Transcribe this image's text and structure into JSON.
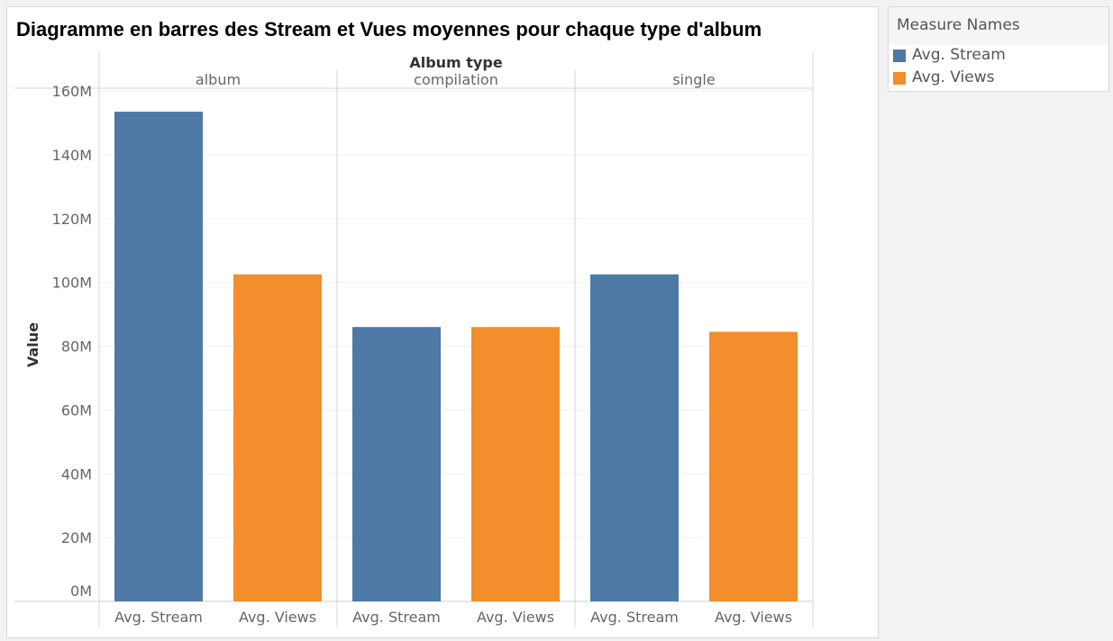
{
  "chart_title": "Diagramme en barres des Stream et Vues moyennes pour chaque type d'album",
  "legend": {
    "title": "Measure Names",
    "items": [
      {
        "label": "Avg. Stream",
        "color": "#4e79a7"
      },
      {
        "label": "Avg. Views",
        "color": "#f28e2b"
      }
    ]
  },
  "chart_data": {
    "type": "bar",
    "title": "Diagramme en barres des Stream et Vues moyennes pour chaque type d'album",
    "column_header": "Album type",
    "ylabel": "Value",
    "ylim": [
      0,
      160000000
    ],
    "yticks": [
      {
        "value": 0,
        "label": "0M"
      },
      {
        "value": 20000000,
        "label": "20M"
      },
      {
        "value": 40000000,
        "label": "40M"
      },
      {
        "value": 60000000,
        "label": "60M"
      },
      {
        "value": 80000000,
        "label": "80M"
      },
      {
        "value": 100000000,
        "label": "100M"
      },
      {
        "value": 120000000,
        "label": "120M"
      },
      {
        "value": 140000000,
        "label": "140M"
      },
      {
        "value": 160000000,
        "label": "160M"
      }
    ],
    "grid": true,
    "legend_position": "right",
    "groups": [
      {
        "name": "album",
        "bars": [
          {
            "measure": "Avg. Stream",
            "value": 153500000,
            "color": "#4e79a7"
          },
          {
            "measure": "Avg. Views",
            "value": 102500000,
            "color": "#f28e2b"
          }
        ]
      },
      {
        "name": "compilation",
        "bars": [
          {
            "measure": "Avg. Stream",
            "value": 86000000,
            "color": "#4e79a7"
          },
          {
            "measure": "Avg. Views",
            "value": 86000000,
            "color": "#f28e2b"
          }
        ]
      },
      {
        "name": "single",
        "bars": [
          {
            "measure": "Avg. Stream",
            "value": 102500000,
            "color": "#4e79a7"
          },
          {
            "measure": "Avg. Views",
            "value": 84500000,
            "color": "#f28e2b"
          }
        ]
      }
    ]
  }
}
